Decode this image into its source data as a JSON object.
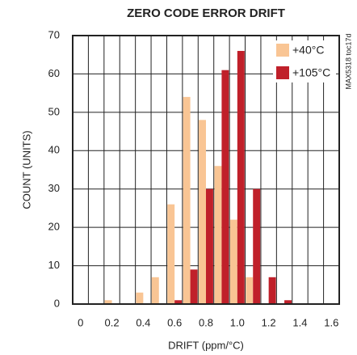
{
  "chart_data": {
    "type": "bar",
    "title": "ZERO CODE ERROR DRIFT",
    "xlabel": "DRIFT (ppm/°C)",
    "ylabel": "COUNT (UNITS)",
    "note": "MAX5318 toc17d",
    "categories": [
      "0",
      null,
      "0.2",
      null,
      "0.4",
      null,
      "0.6",
      null,
      "0.8",
      null,
      "1.0",
      null,
      "1.2",
      null,
      "1.4",
      null,
      "1.6"
    ],
    "series": [
      {
        "name": "+40°C",
        "color": "#f9c594",
        "values": [
          0,
          0,
          1,
          0,
          3,
          7,
          26,
          54,
          48,
          36,
          22,
          7,
          0,
          0,
          0,
          0,
          0
        ]
      },
      {
        "name": "+105°C",
        "color": "#c0202a",
        "values": [
          0,
          0,
          0,
          0,
          0,
          0,
          1,
          9,
          30,
          61,
          66,
          30,
          7,
          1,
          0,
          0,
          0
        ]
      }
    ],
    "ylim": [
      0,
      70
    ],
    "yticks": [
      0,
      10,
      20,
      30,
      40,
      50,
      60,
      70
    ],
    "grid": true,
    "legend": "upper right"
  }
}
